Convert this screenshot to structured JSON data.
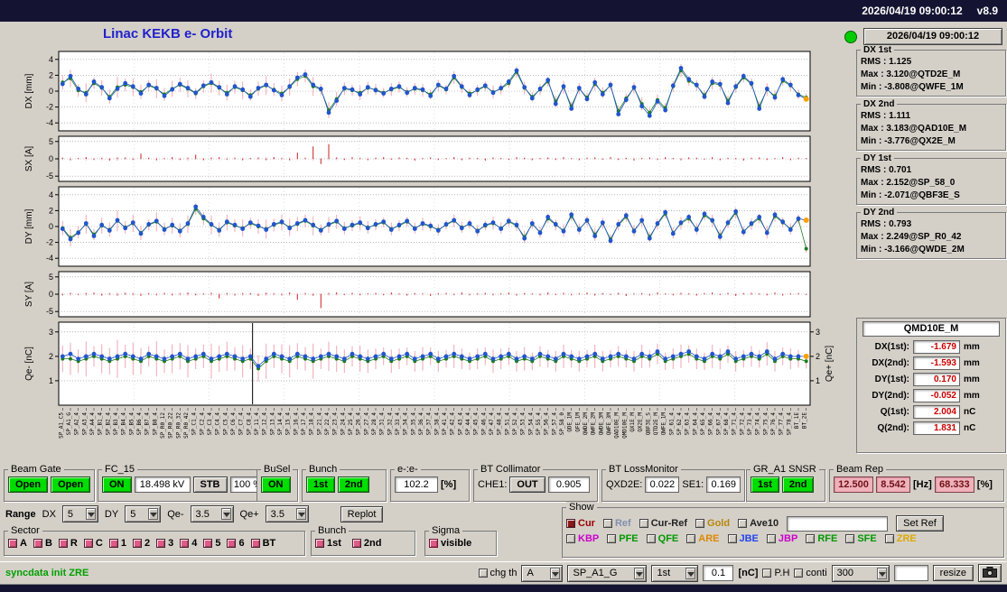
{
  "header": {
    "clock": "2026/04/19 09:00:12",
    "version": "v8.9",
    "title": "Linac KEKB e- Orbit"
  },
  "colors": {
    "accent_blue": "#2255cc",
    "series_green": "#1e7d1e",
    "sigma_pink": "#f2a6b4",
    "spike_red": "#cc2020",
    "last_point_orange": "#ffa000",
    "on_green": "#00dd00",
    "indicator_green": "#00cc00",
    "value_red": "#cc0000",
    "pink_field": "#f0b2ba",
    "title_blue": "#2121cc",
    "status_green": "#00a000"
  },
  "sidebar": {
    "timestamp": "2026/04/19 09:00:12",
    "stats": [
      {
        "title": "DX 1st",
        "rms": "RMS : 1.125",
        "max": "Max : 3.120@QTD2E_M",
        "min": "Min : -3.808@QWFE_1M"
      },
      {
        "title": "DX 2nd",
        "rms": "RMS : 1.111",
        "max": "Max : 3.183@QAD10E_M",
        "min": "Min : -3.776@QX2E_M"
      },
      {
        "title": "DY 1st",
        "rms": "RMS : 0.701",
        "max": "Max : 2.152@SP_58_0",
        "min": "Min : -2.071@QBF3E_S"
      },
      {
        "title": "DY 2nd",
        "rms": "RMS : 0.793",
        "max": "Max : 2.249@SP_R0_42",
        "min": "Min : -3.166@QWDE_2M"
      }
    ],
    "bpm": {
      "title": "QMD10E_M",
      "rows": [
        {
          "label": "DX(1st):",
          "value": "-1.679",
          "unit": "mm"
        },
        {
          "label": "DX(2nd):",
          "value": "-1.593",
          "unit": "mm"
        },
        {
          "label": "DY(1st):",
          "value": "0.170",
          "unit": "mm"
        },
        {
          "label": "DY(2nd):",
          "value": "-0.052",
          "unit": "mm"
        },
        {
          "label": "Q(1st):",
          "value": "2.004",
          "unit": "nC"
        },
        {
          "label": "Q(2nd):",
          "value": "1.831",
          "unit": "nC"
        }
      ]
    }
  },
  "controls": {
    "beam_gate": {
      "legend": "Beam Gate",
      "btn1": "Open",
      "btn2": "Open"
    },
    "fc15": {
      "legend": "FC_15",
      "on": "ON",
      "kv": "18.498 kV",
      "stb": "STB",
      "pct": "100 %"
    },
    "busel": {
      "legend": "BuSel",
      "on": "ON"
    },
    "bunch_top": {
      "legend": "Bunch",
      "b1": "1st",
      "b2": "2nd"
    },
    "ee": {
      "legend": "e-:e-",
      "value": "102.2",
      "unit": "[%]"
    },
    "bt_collimator": {
      "legend": "BT Collimator",
      "che1_label": "CHE1:",
      "che1_state": "OUT",
      "value": "0.905"
    },
    "bt_lossmonitor": {
      "legend": "BT LossMonitor",
      "qxd2e_label": "QXD2E:",
      "qxd2e": "0.022",
      "se1_label": "SE1:",
      "se1": "0.169"
    },
    "gr_a1": {
      "legend": "GR_A1 SNSR",
      "b1": "1st",
      "b2": "2nd"
    },
    "beam_rep": {
      "legend": "Beam Rep",
      "v1": "12.500",
      "v2": "8.542",
      "hz": "[Hz]",
      "v3": "68.333",
      "pct": "[%]"
    },
    "range": {
      "label": "Range",
      "dx_label": "DX",
      "dx": "5",
      "dy_label": "DY",
      "dy": "5",
      "qem_label": "Qe-",
      "qem": "3.5",
      "qep_label": "Qe+",
      "qep": "3.5",
      "replot": "Replot"
    },
    "sector": {
      "legend": "Sector",
      "items": [
        "A",
        "B",
        "R",
        "C",
        "1",
        "2",
        "3",
        "4",
        "5",
        "6",
        "BT"
      ]
    },
    "bunch_bottom": {
      "legend": "Bunch",
      "items": [
        "1st",
        "2nd"
      ]
    },
    "sigma": {
      "legend": "Sigma",
      "label": "visible"
    },
    "show": {
      "legend": "Show",
      "row1": [
        {
          "label": "Cur",
          "color": "#990000",
          "cb": "#8b1a1a"
        },
        {
          "label": "Ref",
          "color": "#8090b0",
          "cb": "#d4d0c8"
        },
        {
          "label": "Cur-Ref",
          "color": "#222222",
          "cb": "#d4d0c8"
        },
        {
          "label": "Gold",
          "color": "#b8860b",
          "cb": "#d4d0c8"
        },
        {
          "label": "Ave10",
          "color": "#222222",
          "cb": "#d4d0c8"
        }
      ],
      "set_ref": "Set Ref",
      "row2": [
        {
          "label": "KBP",
          "color": "#cc00cc",
          "cb": "#d4d0c8"
        },
        {
          "label": "PFE",
          "color": "#009900",
          "cb": "#d4d0c8"
        },
        {
          "label": "QFE",
          "color": "#009900",
          "cb": "#d4d0c8"
        },
        {
          "label": "ARE",
          "color": "#dd8800",
          "cb": "#d4d0c8"
        },
        {
          "label": "JBE",
          "color": "#2244ee",
          "cb": "#d4d0c8"
        },
        {
          "label": "JBP",
          "color": "#cc00cc",
          "cb": "#d4d0c8"
        },
        {
          "label": "RFE",
          "color": "#009900",
          "cb": "#d4d0c8"
        },
        {
          "label": "SFE",
          "color": "#009900",
          "cb": "#d4d0c8"
        },
        {
          "label": "ZRE",
          "color": "#ddaa00",
          "cb": "#d4d0c8"
        }
      ]
    },
    "statusbar": {
      "message": "syncdata init ZRE",
      "chg_th": "chg th",
      "dd1": "A",
      "dd2": "SP_A1_G",
      "dd3": "1st",
      "val": "0.1",
      "unit": "[nC]",
      "ph": "P.H",
      "conti": "conti",
      "dd4": "300",
      "resize": "resize"
    }
  },
  "plots": {
    "sigma_profile": [
      0.9,
      1.1,
      0.8,
      1.2,
      0.7,
      1.0,
      0.9,
      1.3,
      0.8,
      1.1,
      0.9,
      0.7,
      1.2,
      0.8,
      1.0,
      0.9,
      1.1,
      0.7,
      0.8,
      1.2,
      0.9,
      1.0,
      0.8,
      1.1,
      0.7,
      0.9,
      1.2,
      0.8,
      1.0,
      1.1,
      0.9,
      0.8,
      1.2,
      0.7,
      1.0,
      0.9,
      0.8,
      0.7,
      0.9,
      0.8,
      0.7,
      0.6,
      0.8,
      0.7,
      0.6,
      0.7,
      0.8,
      0.6,
      0.7,
      0.6,
      0.8,
      0.7,
      0.6,
      0.7,
      0.6,
      0.8,
      0.7,
      0.6,
      0.7,
      0.8,
      0.6,
      0.7,
      0.6,
      0.7,
      0.8,
      0.6,
      0.7,
      0.6,
      0.8,
      0.7,
      0.6,
      0.7,
      0.6,
      0.7,
      0.8,
      0.6,
      0.7,
      0.6,
      0.7,
      0.8,
      0.6,
      0.7,
      0.6,
      0.8,
      0.7,
      0.6,
      0.7,
      0.6,
      0.7,
      0.6,
      0.8,
      0.7,
      0.6,
      0.7,
      0.6,
      0.5
    ],
    "labels": [
      "SP_A1_C5",
      "SP_A1_G",
      "SP_A2_4",
      "SP_A3_4",
      "SP_A4_4",
      "SP_B1_4",
      "SP_B2_4",
      "SP_B3_4",
      "SP_B4_4",
      "SP_B5_4",
      "SP_B6_4",
      "SP_B7_4",
      "SP_B8_4",
      "SP_R0_12",
      "SP_R0_22",
      "SP_R0_32",
      "SP_R0_42",
      "SP_C1_4",
      "SP_C2_4",
      "SP_C3_4",
      "SP_C4_4",
      "SP_C5_4",
      "SP_C6_4",
      "SP_C7_4",
      "SP_C8_4",
      "SP_11_4",
      "SP_12_4",
      "SP_13_4",
      "SP_14_4",
      "SP_15_4",
      "SP_16_4",
      "SP_17_4",
      "SP_18_4",
      "SP_21_4",
      "SP_22_4",
      "SP_23_4",
      "SP_24_4",
      "SP_25_4",
      "SP_26_4",
      "SP_27_4",
      "SP_28_4",
      "SP_31_4",
      "SP_32_4",
      "SP_33_4",
      "SP_34_4",
      "SP_35_4",
      "SP_36_4",
      "SP_37_4",
      "SP_38_4",
      "SP_41_4",
      "SP_42_4",
      "SP_43_4",
      "SP_44_4",
      "SP_45_4",
      "SP_46_4",
      "SP_47_4",
      "SP_48_4",
      "SP_51_4",
      "SP_52_4",
      "SP_53_4",
      "SP_54_4",
      "SP_55_4",
      "SP_56_4",
      "SP_57_4",
      "SP_58_0",
      "QDE_1M",
      "QFE_1M",
      "QWDE_2M",
      "QWFE_2M",
      "QWDE_3M",
      "QWFE_3M",
      "QAD10E_M",
      "QMD10E_M",
      "QX1E_M",
      "QX2E_M",
      "QBF3E_S",
      "QTD2E_M",
      "QWFE_1M",
      "SP_61_4",
      "SP_62_4",
      "SP_63_4",
      "SP_64_4",
      "SP_65_4",
      "SP_66_4",
      "SP_67_4",
      "SP_68_4",
      "SP_71_4",
      "SP_72_4",
      "SP_73_4",
      "SP_74_4",
      "SP_75_4",
      "SP_76_4",
      "SP_77_4",
      "SP_78_4",
      "BT_1E",
      "BT_2E"
    ],
    "dx": {
      "axis": "DX [mm]",
      "ymin": -5,
      "ymax": 5,
      "ticks": [
        4,
        2,
        0,
        -2,
        -4
      ],
      "green": [
        1.1,
        1.6,
        0.1,
        -0.2,
        1.0,
        0.4,
        -0.7,
        0.5,
        0.8,
        0.5,
        -0.1,
        0.7,
        0.3,
        -0.4,
        0.3,
        0.8,
        0.3,
        -0.3,
        0.6,
        1.0,
        0.4,
        -0.2,
        0.5,
        0.1,
        -0.5,
        0.3,
        0.7,
        0.2,
        -0.3,
        0.5,
        1.5,
        1.9,
        0.6,
        0.2,
        -2.4,
        -1.0,
        0.3,
        0.1,
        -0.2,
        0.4,
        0.2,
        -0.2,
        0.2,
        0.5,
        -0.1,
        0.3,
        0.1,
        -0.4,
        0.7,
        0.2,
        1.7,
        0.5,
        -0.3,
        0.1,
        0.6,
        -0.1,
        0.3,
        1.0,
        2.4,
        0.4,
        -0.7,
        0.2,
        1.2,
        -1.3,
        0.5,
        -1.9,
        0.3,
        -0.8,
        0.9,
        -0.2,
        0.7,
        -2.5,
        -0.9,
        0.4,
        -1.6,
        -2.7,
        -1.1,
        -2.1,
        0.6,
        2.6,
        1.3,
        0.7,
        -0.5,
        1.0,
        0.8,
        -1.2,
        0.5,
        1.7,
        0.9,
        -1.9,
        0.2,
        -0.6,
        1.3,
        0.7,
        -0.4,
        -0.8
      ],
      "blue": [
        0.9,
        1.9,
        0.3,
        -0.4,
        1.2,
        0.5,
        -0.9,
        0.3,
        1.0,
        0.6,
        -0.3,
        0.8,
        0.4,
        -0.6,
        0.2,
        0.9,
        0.4,
        -0.2,
        0.7,
        1.1,
        0.5,
        -0.4,
        0.6,
        0.2,
        -0.7,
        0.4,
        0.8,
        0.1,
        -0.5,
        0.6,
        1.7,
        2.1,
        0.8,
        0.3,
        -2.7,
        -1.2,
        0.4,
        0.2,
        -0.4,
        0.5,
        0.1,
        -0.3,
        0.3,
        0.6,
        -0.2,
        0.4,
        0.2,
        -0.6,
        0.8,
        0.3,
        1.9,
        0.6,
        -0.5,
        0.2,
        0.7,
        -0.2,
        0.4,
        1.2,
        2.6,
        0.5,
        -0.9,
        0.3,
        1.4,
        -1.6,
        0.6,
        -2.2,
        0.4,
        -1.0,
        1.1,
        -0.4,
        0.8,
        -2.9,
        -1.1,
        0.5,
        -1.9,
        -3.1,
        -1.3,
        -2.4,
        0.7,
        2.9,
        1.5,
        0.8,
        -0.7,
        1.2,
        0.9,
        -1.5,
        0.6,
        1.9,
        1.0,
        -2.2,
        0.3,
        -0.8,
        1.5,
        0.8,
        -0.5,
        -1.0
      ]
    },
    "sx": {
      "axis": "SX [A]",
      "ymin": -6.5,
      "ymax": 6.5,
      "ticks": [
        5,
        0,
        -5
      ],
      "bars": [
        0.3,
        -0.4,
        0.2,
        0.5,
        -0.3,
        0.2,
        -0.5,
        0.3,
        0.4,
        -0.2,
        1.5,
        0.3,
        -0.4,
        0.2,
        0.5,
        -0.3,
        0.2,
        1.2,
        -0.4,
        0.3,
        0.5,
        -0.2,
        0.3,
        -0.4,
        0.2,
        0.4,
        -0.3,
        0.5,
        0.2,
        -0.4,
        1.8,
        0.3,
        3.6,
        -1.5,
        4.2,
        0.4,
        -0.3,
        0.5,
        0.2,
        -0.4,
        0.3,
        0.5,
        -0.2,
        0.4,
        0.3,
        -0.5,
        0.2,
        0.4,
        -0.3,
        0.2,
        0.5,
        -0.4,
        0.3,
        0.2,
        -0.5,
        0.4,
        0.2,
        -0.3,
        0.5,
        0.3,
        -0.4,
        0.2,
        0.4,
        -0.3,
        0.5,
        0.2,
        -0.4,
        0.3,
        0.4,
        -0.2,
        0.5,
        -0.3,
        0.3,
        -0.5,
        0.2,
        0.4,
        -0.3,
        0.5,
        0.2,
        -0.4,
        0.4,
        0.3,
        -0.2,
        0.5,
        -0.4,
        0.3,
        0.2,
        -0.5,
        0.3,
        0.4,
        -0.3,
        0.2,
        0.5,
        -0.4,
        0.3,
        0.2
      ]
    },
    "dy": {
      "axis": "DY [mm]",
      "ymin": -5,
      "ymax": 5,
      "ticks": [
        4,
        2,
        0,
        -2,
        -4
      ],
      "green": [
        -0.2,
        -1.4,
        -0.7,
        0.3,
        -1.0,
        0.1,
        -0.4,
        0.7,
        -0.1,
        0.4,
        -0.8,
        0.2,
        0.6,
        -0.3,
        0.1,
        -0.5,
        0.3,
        2.2,
        1.0,
        0.2,
        -0.4,
        0.5,
        0.1,
        -0.2,
        0.4,
        0.0,
        -0.3,
        0.2,
        0.5,
        -0.1,
        0.3,
        0.7,
        0.1,
        -0.4,
        0.2,
        0.6,
        -0.2,
        0.1,
        0.4,
        -0.1,
        0.2,
        0.5,
        -0.3,
        0.1,
        0.6,
        -0.2,
        0.3,
        0.0,
        -0.4,
        0.2,
        0.7,
        -0.1,
        0.3,
        -0.5,
        0.1,
        0.4,
        -0.2,
        0.6,
        0.1,
        -1.3,
        0.3,
        -0.7,
        1.0,
        0.2,
        -0.5,
        1.3,
        -0.3,
        0.7,
        -1.0,
        0.4,
        -1.6,
        0.2,
        1.2,
        -0.5,
        0.7,
        -1.3,
        0.3,
        1.6,
        -0.8,
        0.4,
        1.0,
        -0.3,
        1.4,
        0.7,
        -1.1,
        0.4,
        1.7,
        -0.6,
        0.3,
        1.0,
        -0.7,
        1.3,
        0.5,
        -0.3,
        0.9,
        -2.8
      ],
      "blue": [
        -0.3,
        -1.6,
        -0.8,
        0.4,
        -1.2,
        0.2,
        -0.5,
        0.8,
        -0.2,
        0.5,
        -0.9,
        0.3,
        0.7,
        -0.4,
        0.2,
        -0.6,
        0.4,
        2.5,
        1.2,
        0.3,
        -0.5,
        0.6,
        0.2,
        -0.3,
        0.5,
        0.1,
        -0.4,
        0.3,
        0.6,
        -0.2,
        0.4,
        0.8,
        0.2,
        -0.5,
        0.3,
        0.7,
        -0.3,
        0.2,
        0.5,
        -0.2,
        0.3,
        0.6,
        -0.4,
        0.2,
        0.7,
        -0.3,
        0.4,
        0.1,
        -0.5,
        0.3,
        0.8,
        -0.2,
        0.4,
        -0.6,
        0.2,
        0.5,
        -0.3,
        0.7,
        0.2,
        -1.5,
        0.4,
        -0.8,
        1.2,
        0.3,
        -0.6,
        1.5,
        -0.4,
        0.8,
        -1.2,
        0.5,
        -1.8,
        0.3,
        1.4,
        -0.6,
        0.8,
        -1.5,
        0.4,
        1.8,
        -0.9,
        0.5,
        1.2,
        -0.4,
        1.6,
        0.8,
        -1.3,
        0.5,
        1.9,
        -0.7,
        0.4,
        1.2,
        -0.8,
        1.5,
        0.6,
        -0.4,
        1.0,
        0.8
      ]
    },
    "sy": {
      "axis": "SY [A]",
      "ymin": -6.5,
      "ymax": 6.5,
      "ticks": [
        5,
        0,
        -5
      ],
      "bars": [
        -0.3,
        0.4,
        -0.2,
        0.3,
        0.5,
        -0.4,
        0.2,
        -0.3,
        0.4,
        0.2,
        -0.5,
        0.3,
        -0.2,
        0.4,
        -0.3,
        0.2,
        0.5,
        -0.3,
        0.2,
        0.4,
        -1.2,
        0.3,
        -0.4,
        0.2,
        0.3,
        -0.5,
        0.4,
        0.2,
        -0.3,
        0.5,
        -1.6,
        0.3,
        -0.4,
        -4.0,
        0.3,
        0.5,
        -0.2,
        0.4,
        -0.3,
        0.2,
        0.4,
        -0.3,
        0.5,
        0.2,
        -0.4,
        0.3,
        0.2,
        -0.5,
        0.3,
        0.4,
        -0.2,
        0.5,
        -0.3,
        0.2,
        0.4,
        -0.3,
        0.2,
        0.5,
        -0.4,
        0.3,
        0.2,
        -0.3,
        0.5,
        -0.2,
        0.4,
        -0.3,
        0.2,
        0.5,
        -0.4,
        0.3,
        -0.2,
        0.4,
        -0.5,
        0.2,
        0.3,
        -0.4,
        0.5,
        0.2,
        -0.3,
        0.4,
        0.2,
        -0.4,
        0.3,
        0.5,
        -0.2,
        0.4,
        -0.5,
        0.3,
        0.4,
        0.2,
        -0.3,
        0.5,
        -0.4,
        0.2,
        0.3,
        -0.2
      ]
    },
    "q": {
      "axis": "Qe- [nC]",
      "axis_right": "Qe+ [nC]",
      "ymin": 0,
      "ymax": 3.4,
      "ticks": [
        3,
        2,
        1
      ],
      "cursor": 0.258,
      "green": [
        1.9,
        1.9,
        1.8,
        1.9,
        2.0,
        1.9,
        1.8,
        1.9,
        2.0,
        1.9,
        1.8,
        2.0,
        1.9,
        1.8,
        1.9,
        2.0,
        1.8,
        1.9,
        2.0,
        1.8,
        1.9,
        2.0,
        1.9,
        1.8,
        1.9,
        1.5,
        1.8,
        2.0,
        1.9,
        1.8,
        2.0,
        1.9,
        1.8,
        1.9,
        2.0,
        1.9,
        1.8,
        2.0,
        1.9,
        1.8,
        1.9,
        2.0,
        1.8,
        1.9,
        2.0,
        1.8,
        1.9,
        2.0,
        1.8,
        1.9,
        2.0,
        1.9,
        1.8,
        1.9,
        2.0,
        1.8,
        1.9,
        2.0,
        1.8,
        1.9,
        1.8,
        2.0,
        1.9,
        1.8,
        2.0,
        1.9,
        1.8,
        1.9,
        2.0,
        1.8,
        1.9,
        2.0,
        1.9,
        1.8,
        2.0,
        1.9,
        2.1,
        1.8,
        1.9,
        2.0,
        2.1,
        1.9,
        1.8,
        2.0,
        1.9,
        2.1,
        1.8,
        1.9,
        2.0,
        1.9,
        2.1,
        1.8,
        2.0,
        1.9,
        1.9,
        1.8
      ],
      "blue": [
        2.0,
        2.1,
        1.9,
        2.0,
        2.1,
        2.0,
        1.9,
        2.0,
        2.1,
        2.0,
        1.9,
        2.1,
        2.0,
        1.9,
        2.0,
        2.1,
        1.9,
        2.0,
        2.1,
        1.9,
        2.0,
        2.1,
        2.0,
        1.9,
        2.0,
        1.6,
        1.9,
        2.1,
        2.0,
        1.9,
        2.1,
        2.0,
        1.9,
        2.0,
        2.1,
        2.0,
        1.9,
        2.1,
        2.0,
        1.9,
        2.0,
        2.1,
        1.9,
        2.0,
        2.1,
        1.9,
        2.0,
        2.1,
        1.9,
        2.0,
        2.1,
        2.0,
        1.9,
        2.0,
        2.1,
        1.9,
        2.0,
        2.1,
        1.9,
        2.0,
        1.9,
        2.1,
        2.0,
        1.9,
        2.1,
        2.0,
        1.9,
        2.0,
        2.1,
        1.9,
        2.0,
        2.1,
        2.0,
        1.9,
        2.1,
        2.0,
        2.2,
        1.9,
        2.0,
        2.1,
        2.2,
        2.0,
        1.9,
        2.1,
        2.0,
        2.2,
        1.9,
        2.0,
        2.1,
        2.0,
        2.2,
        1.9,
        2.1,
        2.0,
        2.0,
        2.0
      ]
    }
  }
}
